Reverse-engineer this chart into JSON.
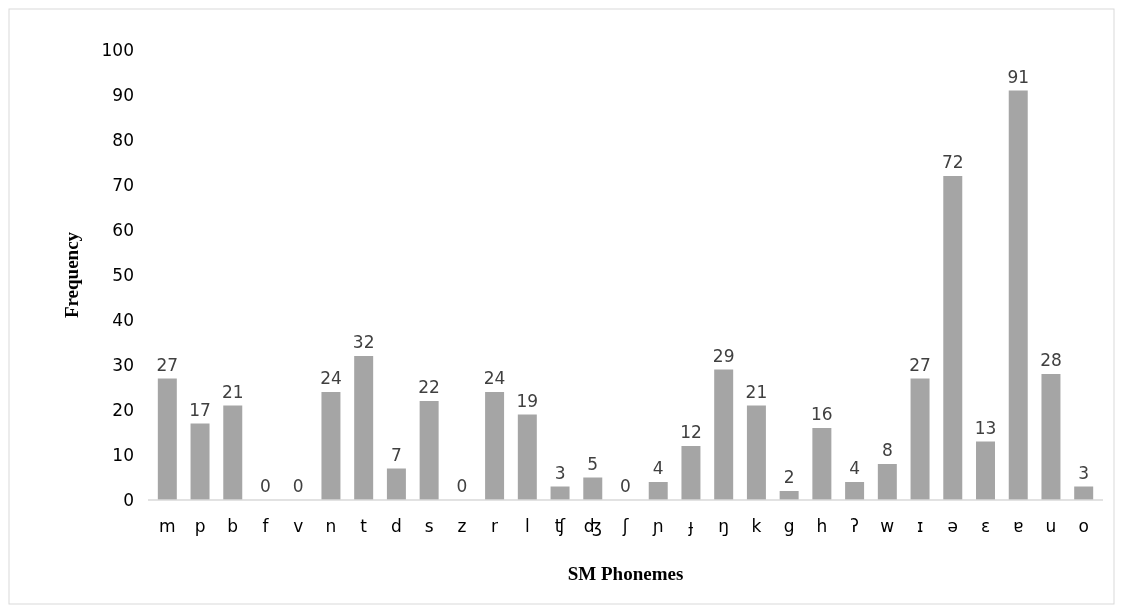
{
  "chart_data": {
    "type": "bar",
    "xlabel": "SM Phonemes",
    "ylabel": "Frequency",
    "categories": [
      "m",
      "p",
      "b",
      "f",
      "v",
      "n",
      "t",
      "d",
      "s",
      "z",
      "r",
      "l",
      "ʧ",
      "ʤ",
      "ʃ",
      "ɲ",
      "ɟ",
      "ŋ",
      "k",
      "g",
      "h",
      "ʔ",
      "w",
      "ɪ",
      "ə",
      "ɛ",
      "ɐ",
      "u",
      "o"
    ],
    "values": [
      27,
      17,
      21,
      0,
      0,
      24,
      32,
      7,
      22,
      0,
      24,
      19,
      3,
      5,
      0,
      4,
      12,
      29,
      21,
      2,
      16,
      4,
      8,
      27,
      72,
      13,
      91,
      28,
      3
    ],
    "color": "#a5a5a5",
    "ylim": [
      0,
      100
    ],
    "yticks": [
      0,
      10,
      20,
      30,
      40,
      50,
      60,
      70,
      80,
      90,
      100
    ],
    "data_labels": true
  }
}
